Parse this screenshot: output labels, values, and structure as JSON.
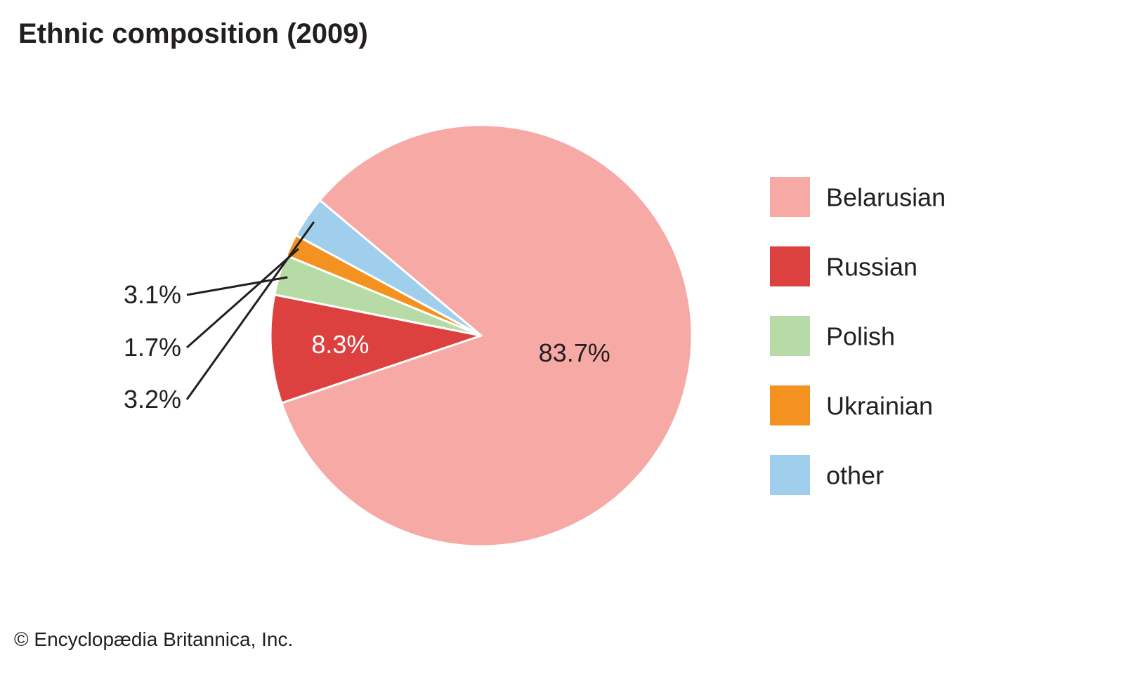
{
  "chart_data": {
    "type": "pie",
    "title": "Ethnic composition (2009)",
    "slices": [
      {
        "name": "Belarusian",
        "value": 83.7,
        "label": "83.7%",
        "color": "#f7a9a6"
      },
      {
        "name": "Russian",
        "value": 8.3,
        "label": "8.3%",
        "color": "#dc4140"
      },
      {
        "name": "Polish",
        "value": 3.1,
        "label": "3.1%",
        "color": "#b7dba6"
      },
      {
        "name": "Ukrainian",
        "value": 1.7,
        "label": "1.7%",
        "color": "#f39221"
      },
      {
        "name": "other",
        "value": 3.2,
        "label": "3.2%",
        "color": "#a0cfee"
      }
    ],
    "legend": "right"
  },
  "credit": "© Encyclopædia Britannica, Inc."
}
